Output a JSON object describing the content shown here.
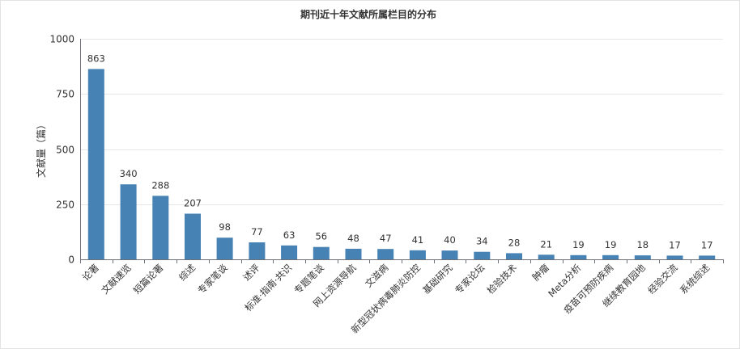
{
  "chart_data": {
    "type": "bar",
    "title": "期刊近十年文献所属栏目的分布",
    "ylabel": "文献量（篇）",
    "xlabel": "",
    "ylim": [
      0,
      1000
    ],
    "yticks": [
      0,
      250,
      500,
      750,
      1000
    ],
    "grid": true,
    "bar_color": "#4682b4",
    "categories": [
      "论著",
      "文献速览",
      "短篇论著",
      "综述",
      "专家笔谈",
      "述评",
      "标准·指南·共识",
      "专题笔谈",
      "网上资源导航",
      "文滋病",
      "新型冠状病毒肺炎防控",
      "基础研究",
      "专家论坛",
      "检验技术",
      "肿瘤",
      "Meta分析",
      "疫苗可预防疾病",
      "继续教育园地",
      "经验交流",
      "系统综述"
    ],
    "values": [
      863,
      340,
      288,
      207,
      98,
      77,
      63,
      56,
      48,
      47,
      41,
      40,
      34,
      28,
      21,
      19,
      19,
      18,
      17,
      17
    ]
  }
}
